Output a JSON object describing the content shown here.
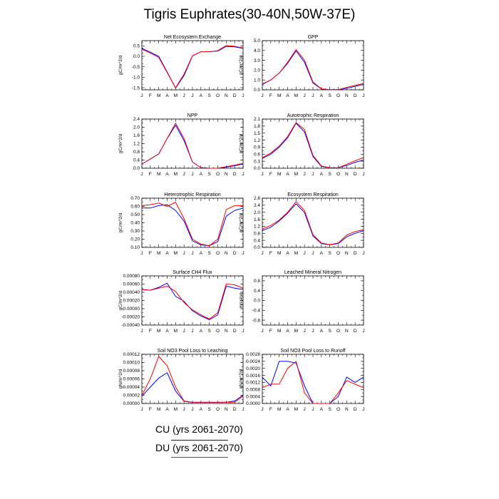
{
  "title": "Tigris Euphrates(30-40N,50W-37E)",
  "colors": {
    "CU": "#0000ff",
    "DU": "#ff0000",
    "axis": "#000000"
  },
  "legend": [
    {
      "key": "CU",
      "label": "CU (yrs 2061-2070)",
      "color": "#0000ff"
    },
    {
      "key": "DU",
      "label": "DU (yrs 2061-2070)",
      "color": "#ff0000"
    }
  ],
  "chart_data": [
    {
      "type": "line",
      "title": "Net Ecosystem Exchange",
      "ylabel": "gC/m^2/d",
      "x": [
        "J",
        "F",
        "M",
        "A",
        "M",
        "J",
        "J",
        "A",
        "S",
        "O",
        "N",
        "D",
        "J"
      ],
      "ylim": [
        -1.6,
        0.75
      ],
      "yticks": [
        "0.5",
        "0.0",
        "-0.5",
        "-1.0",
        "-1.5"
      ],
      "ytick_values": [
        0.5,
        0.0,
        -0.5,
        -1.0,
        -1.5
      ],
      "series": [
        {
          "key": "CU",
          "values": [
            0.38,
            0.2,
            0.0,
            -0.75,
            -1.52,
            -0.92,
            0.02,
            0.22,
            0.22,
            0.25,
            0.47,
            0.45,
            0.38
          ]
        },
        {
          "key": "DU",
          "values": [
            0.33,
            0.16,
            -0.05,
            -0.78,
            -1.5,
            -0.85,
            0.03,
            0.22,
            0.22,
            0.27,
            0.52,
            0.48,
            0.4
          ]
        }
      ]
    },
    {
      "type": "line",
      "title": "GPP",
      "ylabel": "gC/m^2/d",
      "x": [
        "J",
        "F",
        "M",
        "A",
        "M",
        "J",
        "J",
        "A",
        "S",
        "O",
        "N",
        "D",
        "J"
      ],
      "ylim": [
        0.0,
        5.0
      ],
      "yticks": [
        "5.0",
        "4.0",
        "3.0",
        "2.0",
        "1.0",
        "0.0"
      ],
      "ytick_values": [
        5,
        4,
        3,
        2,
        1,
        0
      ],
      "series": [
        {
          "key": "CU",
          "values": [
            0.55,
            1.0,
            1.7,
            2.7,
            3.95,
            2.8,
            0.7,
            0.08,
            0.02,
            0.02,
            0.15,
            0.35,
            0.55
          ]
        },
        {
          "key": "DU",
          "values": [
            0.6,
            1.0,
            1.7,
            2.8,
            4.1,
            3.0,
            0.8,
            0.1,
            0.02,
            0.02,
            0.25,
            0.45,
            0.65
          ]
        }
      ]
    },
    {
      "type": "line",
      "title": "NPP",
      "ylabel": "gC/m^2/d",
      "x": [
        "J",
        "F",
        "M",
        "A",
        "M",
        "J",
        "J",
        "A",
        "S",
        "O",
        "N",
        "D",
        "J"
      ],
      "ylim": [
        0.0,
        2.4
      ],
      "yticks": [
        "2.4",
        "2.0",
        "1.6",
        "1.2",
        "0.8",
        "0.4",
        "0.0"
      ],
      "ytick_values": [
        2.4,
        2.0,
        1.6,
        1.2,
        0.8,
        0.4,
        0.0
      ],
      "series": [
        {
          "key": "CU",
          "values": [
            0.2,
            0.45,
            0.7,
            1.45,
            2.1,
            1.35,
            0.3,
            0.03,
            0.0,
            0.0,
            0.05,
            0.12,
            0.2
          ]
        },
        {
          "key": "DU",
          "values": [
            0.2,
            0.45,
            0.7,
            1.45,
            2.2,
            1.45,
            0.3,
            0.03,
            0.0,
            0.0,
            0.08,
            0.15,
            0.25
          ]
        }
      ]
    },
    {
      "type": "line",
      "title": "Autotrophic Respiration",
      "ylabel": "gC/m^2/d",
      "x": [
        "J",
        "F",
        "M",
        "A",
        "M",
        "J",
        "J",
        "A",
        "S",
        "O",
        "N",
        "D",
        "J"
      ],
      "ylim": [
        0.0,
        2.1
      ],
      "yticks": [
        "2.1",
        "1.8",
        "1.5",
        "1.2",
        "0.9",
        "0.6",
        "0.3",
        "0.0"
      ],
      "ytick_values": [
        2.1,
        1.8,
        1.5,
        1.2,
        0.9,
        0.6,
        0.3,
        0.0
      ],
      "series": [
        {
          "key": "CU",
          "values": [
            0.42,
            0.6,
            0.9,
            1.3,
            1.92,
            1.55,
            0.5,
            0.08,
            0.02,
            0.02,
            0.12,
            0.25,
            0.35
          ]
        },
        {
          "key": "DU",
          "values": [
            0.45,
            0.65,
            0.95,
            1.35,
            1.95,
            1.65,
            0.55,
            0.1,
            0.02,
            0.02,
            0.17,
            0.32,
            0.45
          ]
        }
      ]
    },
    {
      "type": "line",
      "title": "Heterotrophic Respiration",
      "ylabel": "gC/m^2/d",
      "x": [
        "J",
        "F",
        "M",
        "A",
        "M",
        "J",
        "J",
        "A",
        "S",
        "O",
        "N",
        "D",
        "J"
      ],
      "ylim": [
        0.1,
        0.7
      ],
      "yticks": [
        "0.70",
        "0.60",
        "0.50",
        "0.40",
        "0.30",
        "0.20",
        "0.10"
      ],
      "ytick_values": [
        0.7,
        0.6,
        0.5,
        0.4,
        0.3,
        0.2,
        0.1
      ],
      "series": [
        {
          "key": "CU",
          "values": [
            0.58,
            0.58,
            0.61,
            0.62,
            0.55,
            0.42,
            0.18,
            0.13,
            0.12,
            0.17,
            0.48,
            0.55,
            0.58
          ]
        },
        {
          "key": "DU",
          "values": [
            0.61,
            0.62,
            0.64,
            0.6,
            0.65,
            0.45,
            0.2,
            0.14,
            0.12,
            0.2,
            0.56,
            0.61,
            0.61
          ]
        }
      ]
    },
    {
      "type": "line",
      "title": "Ecosystem Respiration",
      "ylabel": "gC/m^2/d",
      "x": [
        "J",
        "F",
        "M",
        "A",
        "M",
        "J",
        "J",
        "A",
        "S",
        "O",
        "N",
        "D",
        "J"
      ],
      "ylim": [
        0.0,
        2.8
      ],
      "yticks": [
        "2.8",
        "2.4",
        "2.0",
        "1.6",
        "1.2",
        "0.8",
        "0.4",
        "0.0"
      ],
      "ytick_values": [
        2.8,
        2.4,
        2.0,
        1.6,
        1.2,
        0.8,
        0.4,
        0.0
      ],
      "series": [
        {
          "key": "CU",
          "values": [
            0.95,
            1.15,
            1.5,
            1.95,
            2.48,
            1.98,
            0.65,
            0.22,
            0.14,
            0.22,
            0.6,
            0.8,
            0.95
          ]
        },
        {
          "key": "DU",
          "values": [
            1.05,
            1.25,
            1.55,
            2.0,
            2.6,
            2.1,
            0.72,
            0.25,
            0.15,
            0.25,
            0.7,
            0.9,
            1.0
          ]
        }
      ]
    },
    {
      "type": "line",
      "title": "Surface CH4 Flux",
      "ylabel": "gC/m^2/d",
      "x": [
        "J",
        "F",
        "M",
        "A",
        "M",
        "J",
        "J",
        "A",
        "S",
        "O",
        "N",
        "D",
        "J"
      ],
      "ylim": [
        -0.0004,
        0.0008
      ],
      "yticks": [
        "0.00080",
        "0.00060",
        "0.00040",
        "0.00020",
        "0.00000",
        "-0.00020",
        "-0.00040"
      ],
      "ytick_values": [
        0.0008,
        0.0006,
        0.0004,
        0.0002,
        0.0,
        -0.0002,
        -0.0004
      ],
      "series": [
        {
          "key": "CU",
          "values": [
            0.00047,
            0.00045,
            0.00052,
            0.00062,
            0.0003,
            0.00018,
            -5e-05,
            -0.00018,
            -0.00027,
            -0.00015,
            0.00055,
            0.0005,
            0.00047
          ]
        },
        {
          "key": "DU",
          "values": [
            0.00046,
            0.00045,
            0.0005,
            0.00055,
            0.00042,
            0.00015,
            -3e-05,
            -0.00015,
            -0.00025,
            -0.0001,
            0.0006,
            0.00058,
            0.0005
          ]
        }
      ]
    },
    {
      "type": "line",
      "title": "Leached Mineral Nitrogen",
      "ylabel": "missing",
      "x": [
        "J",
        "F",
        "M",
        "A",
        "M",
        "J",
        "J",
        "A",
        "S",
        "O",
        "N",
        "D",
        "J"
      ],
      "ylim": [
        -1.0,
        1.0
      ],
      "yticks": [
        "0.8",
        "0.4",
        "0.0",
        "-0.4",
        "-0.8"
      ],
      "ytick_values": [
        0.8,
        0.4,
        0.0,
        -0.4,
        -0.8
      ],
      "series": []
    },
    {
      "type": "line",
      "title": "Soil NO3 Pool Loss to Leaching",
      "ylabel": "gN/m^2/d",
      "x": [
        "J",
        "F",
        "M",
        "A",
        "M",
        "J",
        "J",
        "A",
        "S",
        "O",
        "N",
        "D",
        "J"
      ],
      "ylim": [
        0.0,
        0.00012
      ],
      "yticks": [
        "0.00012",
        "0.00010",
        "0.00008",
        "0.00006",
        "0.00004",
        "0.00002",
        "0.00000"
      ],
      "ytick_values": [
        0.00012,
        0.0001,
        8e-05,
        6e-05,
        4e-05,
        2e-05,
        0.0
      ],
      "series": [
        {
          "key": "CU",
          "values": [
            1.8e-05,
            4e-05,
            6.2e-05,
            7.5e-05,
            3e-05,
            5.5e-06,
            2.5e-06,
            2.5e-06,
            2.5e-06,
            2.5e-06,
            3e-06,
            6e-06,
            2e-05
          ]
        },
        {
          "key": "DU",
          "values": [
            2e-05,
            6e-05,
            0.000115,
            9.2e-05,
            4e-05,
            6e-06,
            3e-06,
            3e-06,
            3e-06,
            3e-06,
            3e-06,
            3e-06,
            1.8e-05
          ]
        }
      ]
    },
    {
      "type": "line",
      "title": "Soil NO3 Pool Loss to Runoff",
      "ylabel": "gN/m^2/d",
      "x": [
        "J",
        "F",
        "M",
        "A",
        "M",
        "J",
        "J",
        "A",
        "S",
        "O",
        "N",
        "D",
        "J"
      ],
      "ylim": [
        0.0,
        0.0028
      ],
      "yticks": [
        "0.0028",
        "0.0024",
        "0.0020",
        "0.0016",
        "0.0012",
        "0.0008",
        "0.0004",
        "0.0000"
      ],
      "ytick_values": [
        0.0028,
        0.0024,
        0.002,
        0.0016,
        0.0012,
        0.0008,
        0.0004,
        0.0
      ],
      "series": [
        {
          "key": "CU",
          "values": [
            0.0015,
            0.001,
            0.0024,
            0.0024,
            0.0023,
            0.001,
            0.0,
            0.0,
            0.0,
            0.0004,
            0.0015,
            0.0012,
            0.0015
          ]
        },
        {
          "key": "DU",
          "values": [
            0.0009,
            0.0011,
            0.0011,
            0.002,
            0.0024,
            0.0006,
            0.0,
            0.0,
            0.0,
            0.0006,
            0.0013,
            0.0011,
            0.0009
          ]
        }
      ]
    }
  ]
}
